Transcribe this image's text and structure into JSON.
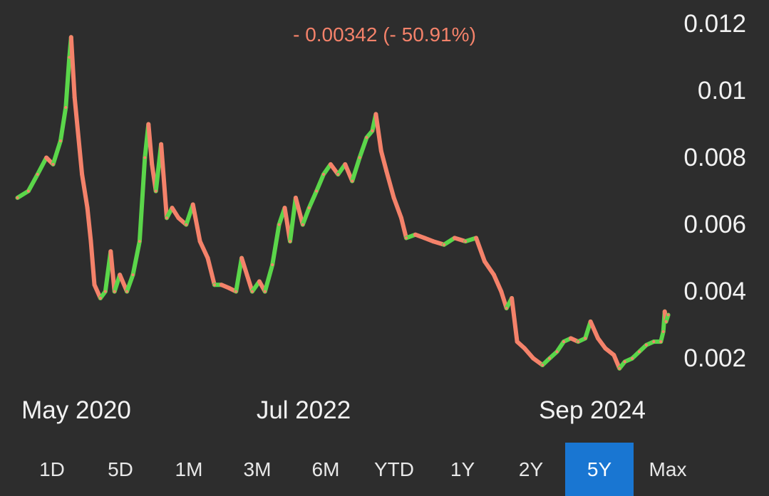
{
  "header": {
    "change_text": "- 0.00342 (- 50.91%)",
    "change_color": "#f4826a"
  },
  "colors": {
    "up": "#5bd64a",
    "down": "#f4826a",
    "background": "#2d2d2d",
    "active_tab": "#1976d2"
  },
  "range_tabs": [
    {
      "label": "1D"
    },
    {
      "label": "5D"
    },
    {
      "label": "1M"
    },
    {
      "label": "3M"
    },
    {
      "label": "6M"
    },
    {
      "label": "YTD"
    },
    {
      "label": "1Y"
    },
    {
      "label": "2Y"
    },
    {
      "label": "5Y",
      "active": true
    },
    {
      "label": "Max"
    }
  ],
  "chart_data": {
    "type": "line",
    "title": "",
    "xlabel": "",
    "ylabel": "",
    "y_ticks": [
      "0.012",
      "0.01",
      "0.008",
      "0.006",
      "0.004",
      "0.002"
    ],
    "x_ticks": [
      "May 2020",
      "Jul 2022",
      "Sep 2024"
    ],
    "ylim": [
      0.0008,
      0.0125
    ],
    "xlim": [
      "2019-12-01",
      "2025-01-20"
    ],
    "series": [
      {
        "values": [
          [
            "2019-12-10",
            0.0068
          ],
          [
            "2020-01-10",
            0.007
          ],
          [
            "2020-02-05",
            0.0075
          ],
          [
            "2020-03-01",
            0.008
          ],
          [
            "2020-03-20",
            0.0078
          ],
          [
            "2020-04-10",
            0.0085
          ],
          [
            "2020-04-25",
            0.0095
          ],
          [
            "2020-05-05",
            0.011
          ],
          [
            "2020-05-10",
            0.0116
          ],
          [
            "2020-05-20",
            0.0098
          ],
          [
            "2020-06-10",
            0.0075
          ],
          [
            "2020-06-25",
            0.0065
          ],
          [
            "2020-07-05",
            0.0055
          ],
          [
            "2020-07-15",
            0.0042
          ],
          [
            "2020-08-01",
            0.0038
          ],
          [
            "2020-08-15",
            0.004
          ],
          [
            "2020-08-30",
            0.0052
          ],
          [
            "2020-09-10",
            0.004
          ],
          [
            "2020-09-25",
            0.0045
          ],
          [
            "2020-10-15",
            0.004
          ],
          [
            "2020-11-01",
            0.0045
          ],
          [
            "2020-11-20",
            0.0055
          ],
          [
            "2020-12-05",
            0.008
          ],
          [
            "2020-12-15",
            0.009
          ],
          [
            "2020-12-25",
            0.0078
          ],
          [
            "2021-01-05",
            0.007
          ],
          [
            "2021-01-20",
            0.0084
          ],
          [
            "2021-02-05",
            0.0062
          ],
          [
            "2021-02-20",
            0.0065
          ],
          [
            "2021-03-10",
            0.0062
          ],
          [
            "2021-04-01",
            0.006
          ],
          [
            "2021-04-20",
            0.0066
          ],
          [
            "2021-05-10",
            0.0055
          ],
          [
            "2021-06-01",
            0.005
          ],
          [
            "2021-06-20",
            0.0042
          ],
          [
            "2021-07-10",
            0.0042
          ],
          [
            "2021-08-01",
            0.0041
          ],
          [
            "2021-08-20",
            0.004
          ],
          [
            "2021-09-05",
            0.005
          ],
          [
            "2021-09-20",
            0.0045
          ],
          [
            "2021-10-05",
            0.004
          ],
          [
            "2021-10-25",
            0.0043
          ],
          [
            "2021-11-10",
            0.004
          ],
          [
            "2021-12-01",
            0.0048
          ],
          [
            "2021-12-20",
            0.006
          ],
          [
            "2022-01-05",
            0.0065
          ],
          [
            "2022-01-20",
            0.0055
          ],
          [
            "2022-02-05",
            0.0068
          ],
          [
            "2022-02-25",
            0.006
          ],
          [
            "2022-03-15",
            0.0065
          ],
          [
            "2022-04-05",
            0.007
          ],
          [
            "2022-04-25",
            0.0075
          ],
          [
            "2022-05-15",
            0.0078
          ],
          [
            "2022-06-05",
            0.0075
          ],
          [
            "2022-06-25",
            0.0078
          ],
          [
            "2022-07-15",
            0.0073
          ],
          [
            "2022-08-05",
            0.008
          ],
          [
            "2022-08-25",
            0.0086
          ],
          [
            "2022-09-10",
            0.0088
          ],
          [
            "2022-09-20",
            0.0093
          ],
          [
            "2022-10-05",
            0.0082
          ],
          [
            "2022-10-20",
            0.0076
          ],
          [
            "2022-11-10",
            0.0068
          ],
          [
            "2022-12-01",
            0.0062
          ],
          [
            "2022-12-15",
            0.0056
          ],
          [
            "2023-01-10",
            0.0057
          ],
          [
            "2023-02-05",
            0.0056
          ],
          [
            "2023-03-01",
            0.0055
          ],
          [
            "2023-04-01",
            0.0054
          ],
          [
            "2023-05-01",
            0.0056
          ],
          [
            "2023-06-01",
            0.0055
          ],
          [
            "2023-07-01",
            0.0056
          ],
          [
            "2023-07-25",
            0.0049
          ],
          [
            "2023-08-20",
            0.0045
          ],
          [
            "2023-09-10",
            0.004
          ],
          [
            "2023-09-25",
            0.0035
          ],
          [
            "2023-10-10",
            0.0038
          ],
          [
            "2023-10-25",
            0.0025
          ],
          [
            "2023-11-15",
            0.0023
          ],
          [
            "2023-12-10",
            0.002
          ],
          [
            "2024-01-05",
            0.0018
          ],
          [
            "2024-01-25",
            0.002
          ],
          [
            "2024-02-15",
            0.0022
          ],
          [
            "2024-03-05",
            0.0025
          ],
          [
            "2024-03-25",
            0.0026
          ],
          [
            "2024-04-15",
            0.0025
          ],
          [
            "2024-05-05",
            0.0026
          ],
          [
            "2024-05-20",
            0.0031
          ],
          [
            "2024-06-10",
            0.0026
          ],
          [
            "2024-07-01",
            0.0023
          ],
          [
            "2024-07-25",
            0.0021
          ],
          [
            "2024-08-10",
            0.0017
          ],
          [
            "2024-08-25",
            0.0019
          ],
          [
            "2024-09-15",
            0.002
          ],
          [
            "2024-10-05",
            0.0022
          ],
          [
            "2024-10-25",
            0.0024
          ],
          [
            "2024-11-15",
            0.0025
          ],
          [
            "2024-12-05",
            0.0025
          ],
          [
            "2024-12-12",
            0.0028
          ],
          [
            "2024-12-16",
            0.0034
          ],
          [
            "2024-12-20",
            0.0031
          ],
          [
            "2024-12-26",
            0.0033
          ]
        ]
      }
    ]
  }
}
